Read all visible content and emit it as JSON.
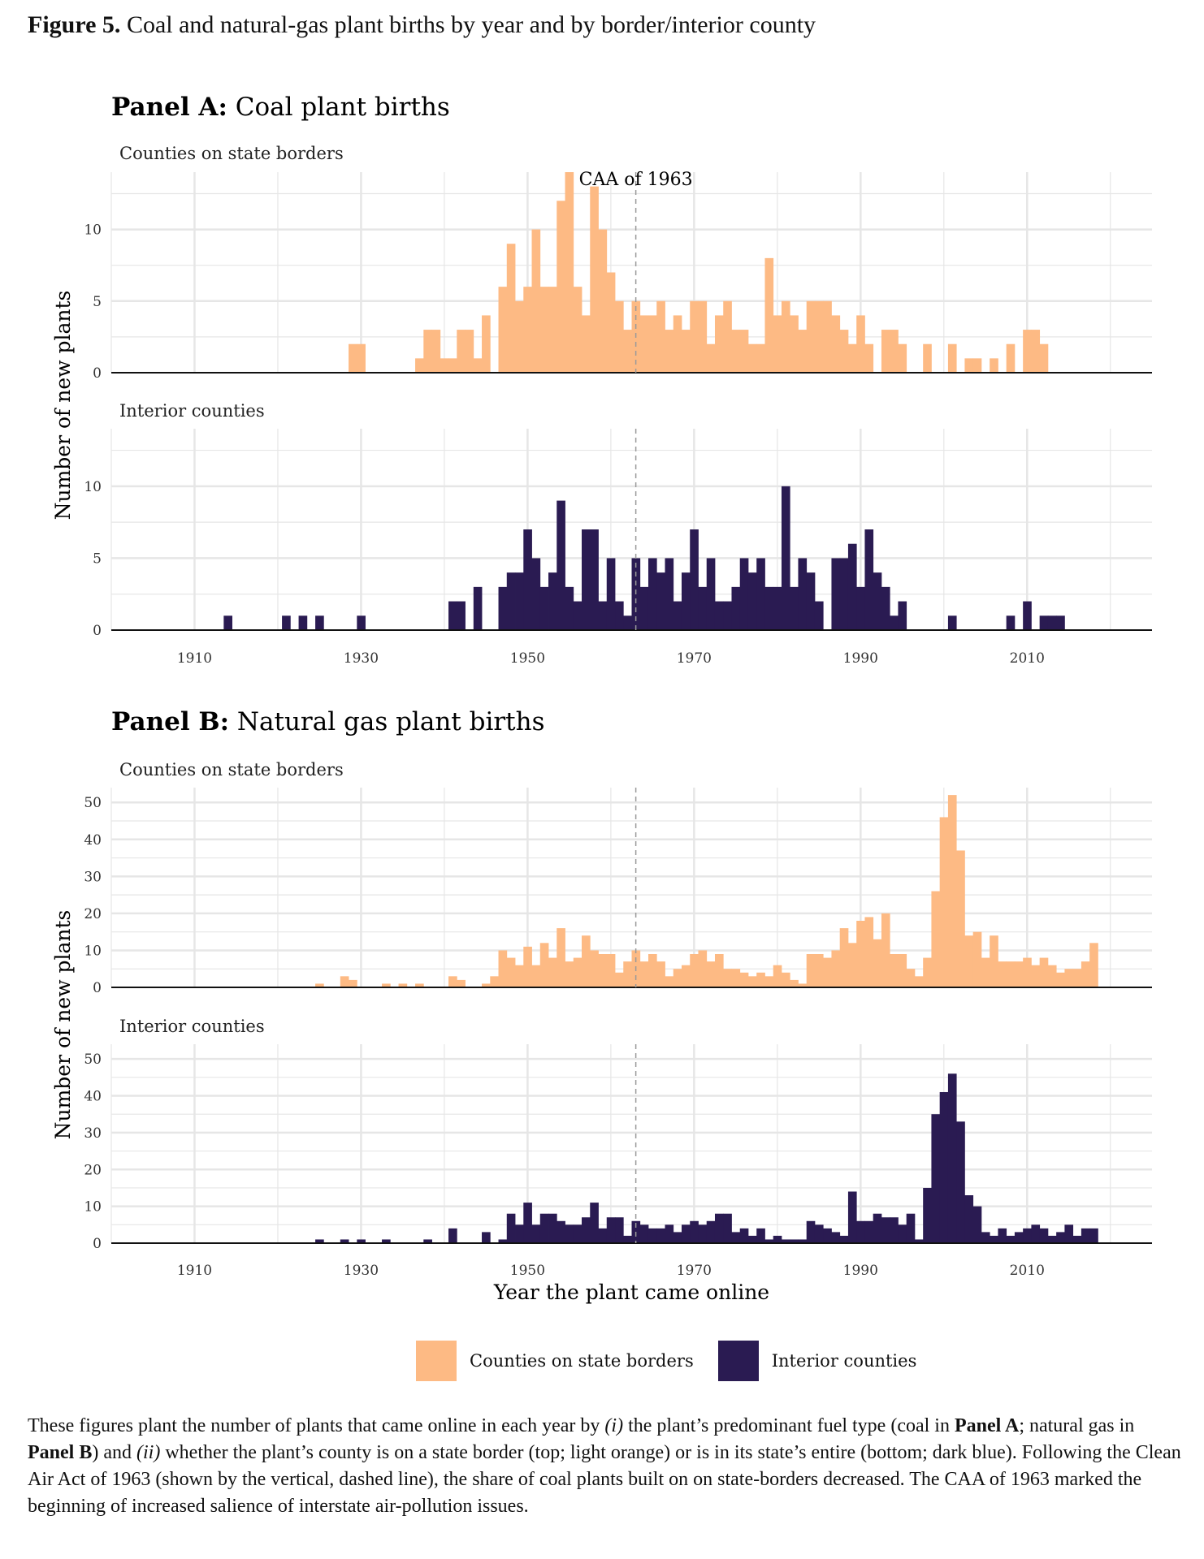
{
  "figure": {
    "label": "Figure 5.",
    "title": "Coal and natural-gas plant births by year and by border/interior county"
  },
  "colors": {
    "border": "#FDBA84",
    "interior": "#2A1B52",
    "grid": "#E6E6E6"
  },
  "annotation": {
    "text": "CAA of 1963",
    "year": 1963
  },
  "legend": {
    "border_label": "Counties on state borders",
    "interior_label": "Interior counties"
  },
  "caption": {
    "p1": "These figures plant the number of plants that came online in each year by ",
    "i1": "(i)",
    "p2": " the plant’s predominant fuel type (coal in ",
    "b1": "Panel A",
    "p3": "; natural gas in ",
    "b2": "Panel B",
    "p4": ") and ",
    "i2": "(ii)",
    "p5": " whether the plant’s county is on a state border (top; light orange) or is in its state’s entire (bottom; dark blue). Following the Clean Air Act of 1963 (shown by the vertical, dashed line), the share of coal plants built on on state-borders decreased. The CAA of 1963 marked the beginning of increased salience of interstate air-pollution issues."
  },
  "chart_data": [
    {
      "type": "bar",
      "panel_label": "Panel A:",
      "panel_title": "Coal plant births",
      "ylabel": "Number of new plants",
      "xlabel": "",
      "x_ticks": [
        1910,
        1930,
        1950,
        1970,
        1990,
        2010
      ],
      "xlim": [
        1900,
        2025
      ],
      "facets": [
        {
          "label": "Counties on state borders",
          "series": "border",
          "y_ticks": [
            0,
            5,
            10
          ],
          "ylim": [
            0,
            14
          ],
          "years": [
            1929,
            1930,
            1937,
            1938,
            1939,
            1940,
            1941,
            1942,
            1943,
            1944,
            1945,
            1947,
            1948,
            1949,
            1950,
            1951,
            1952,
            1953,
            1954,
            1955,
            1956,
            1957,
            1958,
            1959,
            1960,
            1961,
            1962,
            1963,
            1964,
            1965,
            1966,
            1967,
            1968,
            1969,
            1970,
            1971,
            1972,
            1973,
            1974,
            1975,
            1976,
            1977,
            1978,
            1979,
            1980,
            1981,
            1982,
            1983,
            1984,
            1985,
            1986,
            1987,
            1988,
            1989,
            1990,
            1991,
            1993,
            1994,
            1995,
            1998,
            2001,
            2003,
            2004,
            2006,
            2008,
            2010,
            2011,
            2012
          ],
          "values": [
            2,
            2,
            1,
            3,
            3,
            1,
            1,
            3,
            3,
            1,
            4,
            6,
            9,
            5,
            6,
            10,
            6,
            6,
            12,
            14,
            6,
            4,
            13,
            10,
            7,
            5,
            3,
            5,
            4,
            4,
            5,
            3,
            4,
            3,
            5,
            5,
            2,
            4,
            5,
            3,
            3,
            2,
            2,
            8,
            4,
            5,
            4,
            3,
            5,
            5,
            5,
            4,
            3,
            2,
            4,
            2,
            3,
            3,
            2,
            2,
            2,
            1,
            1,
            1,
            2,
            3,
            3,
            2
          ]
        },
        {
          "label": "Interior counties",
          "series": "interior",
          "y_ticks": [
            0,
            5,
            10
          ],
          "ylim": [
            0,
            14
          ],
          "years": [
            1914,
            1921,
            1923,
            1925,
            1930,
            1941,
            1942,
            1944,
            1947,
            1948,
            1949,
            1950,
            1951,
            1952,
            1953,
            1954,
            1955,
            1956,
            1957,
            1958,
            1959,
            1960,
            1961,
            1962,
            1963,
            1964,
            1965,
            1966,
            1967,
            1968,
            1969,
            1970,
            1971,
            1972,
            1973,
            1974,
            1975,
            1976,
            1977,
            1978,
            1979,
            1980,
            1981,
            1982,
            1983,
            1984,
            1985,
            1987,
            1988,
            1989,
            1990,
            1991,
            1992,
            1993,
            1994,
            1995,
            2001,
            2008,
            2010,
            2012,
            2013,
            2014
          ],
          "values": [
            1,
            1,
            1,
            1,
            1,
            2,
            2,
            3,
            3,
            4,
            4,
            7,
            5,
            3,
            4,
            9,
            3,
            2,
            7,
            7,
            2,
            5,
            2,
            1,
            5,
            3,
            5,
            4,
            5,
            2,
            4,
            7,
            3,
            5,
            2,
            2,
            3,
            5,
            4,
            5,
            3,
            3,
            10,
            3,
            5,
            4,
            2,
            5,
            5,
            6,
            3,
            7,
            4,
            3,
            1,
            2,
            1,
            1,
            2,
            1,
            1,
            1
          ]
        }
      ]
    },
    {
      "type": "bar",
      "panel_label": "Panel B:",
      "panel_title": "Natural gas plant births",
      "ylabel": "Number of new plants",
      "xlabel": "Year the plant came online",
      "x_ticks": [
        1910,
        1930,
        1950,
        1970,
        1990,
        2010
      ],
      "xlim": [
        1900,
        2025
      ],
      "facets": [
        {
          "label": "Counties on state borders",
          "series": "border",
          "y_ticks": [
            0,
            10,
            20,
            30,
            40,
            50
          ],
          "ylim": [
            0,
            54
          ],
          "years": [
            1925,
            1928,
            1929,
            1933,
            1935,
            1937,
            1941,
            1942,
            1945,
            1946,
            1947,
            1948,
            1949,
            1950,
            1951,
            1952,
            1953,
            1954,
            1955,
            1956,
            1957,
            1958,
            1959,
            1960,
            1961,
            1962,
            1963,
            1964,
            1965,
            1966,
            1967,
            1968,
            1969,
            1970,
            1971,
            1972,
            1973,
            1974,
            1975,
            1976,
            1977,
            1978,
            1979,
            1980,
            1981,
            1982,
            1983,
            1984,
            1985,
            1986,
            1987,
            1988,
            1989,
            1990,
            1991,
            1992,
            1993,
            1994,
            1995,
            1996,
            1997,
            1998,
            1999,
            2000,
            2001,
            2002,
            2003,
            2004,
            2005,
            2006,
            2007,
            2008,
            2009,
            2010,
            2011,
            2012,
            2013,
            2014,
            2015,
            2016,
            2017,
            2018
          ],
          "values": [
            1,
            3,
            2,
            1,
            1,
            1,
            3,
            2,
            1,
            3,
            10,
            8,
            6,
            11,
            6,
            12,
            8,
            16,
            7,
            8,
            14,
            10,
            9,
            9,
            4,
            7,
            10,
            7,
            9,
            7,
            3,
            5,
            6,
            9,
            10,
            7,
            9,
            5,
            5,
            4,
            3,
            4,
            3,
            6,
            4,
            2,
            1,
            9,
            9,
            8,
            10,
            16,
            12,
            18,
            19,
            13,
            20,
            9,
            9,
            5,
            3,
            8,
            26,
            46,
            52,
            37,
            14,
            15,
            8,
            14,
            7,
            7,
            7,
            8,
            6,
            8,
            6,
            4,
            5,
            5,
            7,
            12
          ]
        },
        {
          "label": "Interior counties",
          "series": "interior",
          "y_ticks": [
            0,
            10,
            20,
            30,
            40,
            50
          ],
          "ylim": [
            0,
            54
          ],
          "years": [
            1925,
            1928,
            1930,
            1933,
            1938,
            1941,
            1945,
            1947,
            1948,
            1949,
            1950,
            1951,
            1952,
            1953,
            1954,
            1955,
            1956,
            1957,
            1958,
            1959,
            1960,
            1961,
            1962,
            1963,
            1964,
            1965,
            1966,
            1967,
            1968,
            1969,
            1970,
            1971,
            1972,
            1973,
            1974,
            1975,
            1976,
            1977,
            1978,
            1979,
            1980,
            1981,
            1982,
            1983,
            1984,
            1985,
            1986,
            1987,
            1988,
            1989,
            1990,
            1991,
            1992,
            1993,
            1994,
            1995,
            1996,
            1997,
            1998,
            1999,
            2000,
            2001,
            2002,
            2003,
            2004,
            2005,
            2006,
            2007,
            2008,
            2009,
            2010,
            2011,
            2012,
            2013,
            2014,
            2015,
            2016,
            2017,
            2018
          ],
          "values": [
            1,
            1,
            1,
            1,
            1,
            4,
            3,
            1,
            8,
            5,
            11,
            5,
            8,
            8,
            6,
            5,
            5,
            7,
            11,
            4,
            7,
            7,
            2,
            6,
            5,
            4,
            4,
            5,
            3,
            5,
            6,
            5,
            6,
            8,
            8,
            3,
            4,
            2,
            4,
            1,
            2,
            1,
            1,
            1,
            6,
            5,
            4,
            3,
            2,
            14,
            6,
            6,
            8,
            7,
            7,
            5,
            8,
            1,
            15,
            35,
            41,
            46,
            33,
            13,
            10,
            3,
            2,
            4,
            2,
            3,
            4,
            5,
            4,
            2,
            3,
            5,
            2,
            4,
            4
          ]
        }
      ]
    }
  ]
}
